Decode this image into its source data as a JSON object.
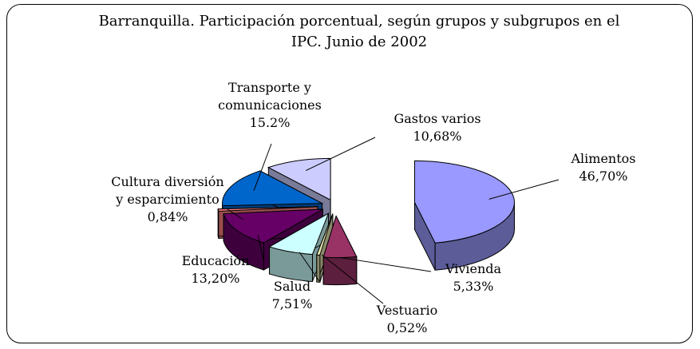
{
  "chart_data": {
    "type": "pie3d",
    "title": "Barranquilla. Participación porcentual, según grupos y subgrupos en el IPC. Junio de 2002",
    "categories": [
      "Alimentos",
      "Vivienda",
      "Vestuario",
      "Salud",
      "Educación",
      "Cultura diversión y esparcimiento",
      "Transporte y comunicaciones",
      "Gastos varios"
    ],
    "values": [
      46.7,
      5.33,
      0.52,
      7.51,
      13.2,
      0.84,
      15.2,
      10.68
    ],
    "value_labels": [
      "46,70%",
      "5,33%",
      "0,52%",
      "7,51%",
      "13,20%",
      "0,84%",
      "15.2%",
      "10,68%"
    ],
    "colors": [
      "#9999ff",
      "#993366",
      "#e6e6b0",
      "#ccffff",
      "#660066",
      "#ff8080",
      "#0066cc",
      "#ccccff"
    ]
  }
}
